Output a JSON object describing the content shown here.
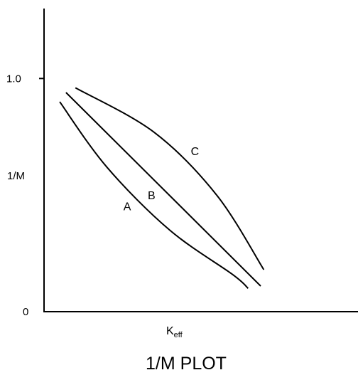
{
  "chart_data": {
    "type": "line",
    "title": "1/M PLOT",
    "xlabel": {
      "main": "K",
      "sub": "eff"
    },
    "ylabel": "1/M",
    "y_ticks": [
      {
        "value": 0,
        "label": "0"
      },
      {
        "value": 1.0,
        "label": "1.0"
      }
    ],
    "ylim": [
      0,
      1.3
    ],
    "xlim": [
      0,
      1
    ],
    "grid": false,
    "legend": "none",
    "series": [
      {
        "name": "A",
        "curve": "concave-up",
        "points": [
          [
            0.05,
            0.9
          ],
          [
            0.2,
            0.62
          ],
          [
            0.4,
            0.35
          ],
          [
            0.6,
            0.16
          ],
          [
            0.65,
            0.1
          ]
        ]
      },
      {
        "name": "B",
        "curve": "straight",
        "points": [
          [
            0.07,
            0.94
          ],
          [
            0.69,
            0.11
          ]
        ]
      },
      {
        "name": "C",
        "curve": "concave-down",
        "points": [
          [
            0.1,
            0.96
          ],
          [
            0.35,
            0.77
          ],
          [
            0.55,
            0.5
          ],
          [
            0.7,
            0.18
          ]
        ]
      }
    ]
  },
  "colors": {
    "line": "#000000",
    "background": "#ffffff"
  }
}
